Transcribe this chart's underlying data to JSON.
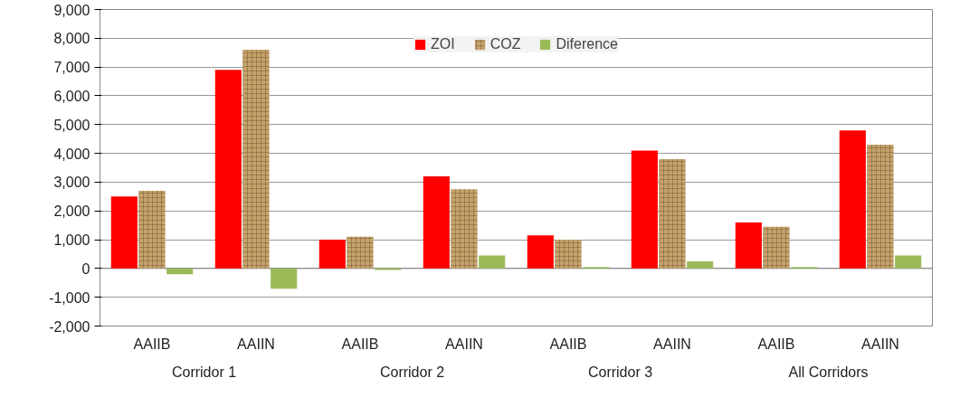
{
  "chart_data": {
    "type": "bar",
    "categories": [
      "AAIIB",
      "AAIIN",
      "AAIIB",
      "AAIIN",
      "AAIIB",
      "AAIIN",
      "AAIIB",
      "AAIIN"
    ],
    "annotations": [
      "Corridor 1",
      "Corridor 2",
      "Corridor 3",
      "All Corridors"
    ],
    "series": [
      {
        "name": "ZOI",
        "color": "#ff0000",
        "values": [
          2500,
          6900,
          1000,
          3200,
          1150,
          4100,
          1600,
          4800
        ]
      },
      {
        "name": "COZ",
        "color": "#c4a26c",
        "values": [
          2700,
          7600,
          1100,
          2750,
          1000,
          3800,
          1450,
          4300
        ]
      },
      {
        "name": "Diference",
        "color": "#9bbb59",
        "values": [
          -200,
          -700,
          -50,
          450,
          50,
          250,
          50,
          450
        ]
      }
    ],
    "ylim": [
      -2000,
      9000
    ],
    "yticks": [
      {
        "value": -2000,
        "label": "-2,000"
      },
      {
        "value": -1000,
        "label": "-1,000"
      },
      0,
      {
        "value": 1000,
        "label": "1,000"
      },
      {
        "value": 2000,
        "label": "2,000"
      },
      {
        "value": 3000,
        "label": "3,000"
      },
      {
        "value": 4000,
        "label": "4,000"
      },
      {
        "value": 5000,
        "label": "5,000"
      },
      {
        "value": 6000,
        "label": "6,000"
      },
      {
        "value": 7000,
        "label": "7,000"
      },
      {
        "value": 8000,
        "label": "8,000"
      },
      {
        "value": 9000,
        "label": "9,000"
      }
    ],
    "grid": "y",
    "legend": "top"
  }
}
